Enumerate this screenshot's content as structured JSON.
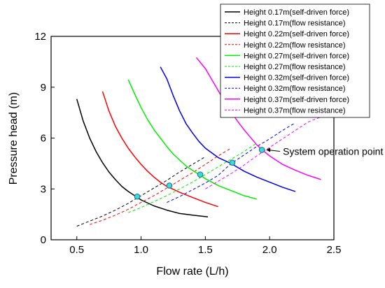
{
  "chart_data": {
    "type": "line",
    "xlabel": "Flow rate (L/h)",
    "ylabel": "Pressure head (m)",
    "xlim": [
      0.3,
      2.5
    ],
    "ylim": [
      0,
      12
    ],
    "xticks": [
      "0.5",
      "1.0",
      "1.5",
      "2.0",
      "2.5"
    ],
    "yticks": [
      "0",
      "3",
      "6",
      "9",
      "12"
    ],
    "grid": false,
    "legend_position": "top-right",
    "series": [
      {
        "name": "Height 0.17m(self-driven force)",
        "color": "#000000",
        "style": "solid",
        "points": [
          [
            0.5,
            8.3
          ],
          [
            0.55,
            7.0
          ],
          [
            0.6,
            6.0
          ],
          [
            0.65,
            5.2
          ],
          [
            0.7,
            4.55
          ],
          [
            0.75,
            4.0
          ],
          [
            0.8,
            3.55
          ],
          [
            0.85,
            3.15
          ],
          [
            0.9,
            2.85
          ],
          [
            0.95,
            2.6
          ],
          [
            1.0,
            2.35
          ],
          [
            1.1,
            2.0
          ],
          [
            1.2,
            1.75
          ],
          [
            1.3,
            1.55
          ],
          [
            1.4,
            1.45
          ],
          [
            1.52,
            1.35
          ]
        ]
      },
      {
        "name": "Height 0.17m(flow resistance)",
        "color": "#000000",
        "style": "dashed",
        "points": [
          [
            0.5,
            0.8
          ],
          [
            0.6,
            1.1
          ],
          [
            0.7,
            1.4
          ],
          [
            0.8,
            1.75
          ],
          [
            0.9,
            2.15
          ],
          [
            1.0,
            2.6
          ],
          [
            1.1,
            3.05
          ],
          [
            1.2,
            3.5
          ],
          [
            1.3,
            4.0
          ],
          [
            1.4,
            4.45
          ],
          [
            1.5,
            4.9
          ]
        ]
      },
      {
        "name": "Height 0.22m(self-driven force)",
        "color": "#ff0000",
        "style": "solid",
        "points": [
          [
            0.7,
            8.75
          ],
          [
            0.75,
            7.6
          ],
          [
            0.8,
            6.7
          ],
          [
            0.85,
            6.0
          ],
          [
            0.9,
            5.4
          ],
          [
            0.95,
            4.9
          ],
          [
            1.0,
            4.45
          ],
          [
            1.05,
            4.05
          ],
          [
            1.1,
            3.7
          ],
          [
            1.15,
            3.4
          ],
          [
            1.2,
            3.15
          ],
          [
            1.3,
            2.8
          ],
          [
            1.4,
            2.5
          ],
          [
            1.5,
            2.2
          ],
          [
            1.6,
            1.95
          ]
        ]
      },
      {
        "name": "Height 0.22m(flow resistance)",
        "color": "#ff0000",
        "style": "dashed",
        "points": [
          [
            0.6,
            0.9
          ],
          [
            0.7,
            1.15
          ],
          [
            0.8,
            1.45
          ],
          [
            0.9,
            1.8
          ],
          [
            1.0,
            2.2
          ],
          [
            1.1,
            2.6
          ],
          [
            1.2,
            3.05
          ],
          [
            1.3,
            3.5
          ],
          [
            1.4,
            3.95
          ],
          [
            1.5,
            4.45
          ],
          [
            1.6,
            4.95
          ],
          [
            1.7,
            5.4
          ]
        ]
      },
      {
        "name": "Height 0.27m(self-driven force)",
        "color": "#00ee00",
        "style": "solid",
        "points": [
          [
            0.9,
            9.45
          ],
          [
            0.95,
            8.6
          ],
          [
            1.0,
            7.8
          ],
          [
            1.05,
            7.1
          ],
          [
            1.1,
            6.5
          ],
          [
            1.15,
            6.0
          ],
          [
            1.2,
            5.5
          ],
          [
            1.25,
            5.05
          ],
          [
            1.3,
            4.7
          ],
          [
            1.35,
            4.35
          ],
          [
            1.4,
            4.1
          ],
          [
            1.45,
            3.85
          ],
          [
            1.5,
            3.6
          ],
          [
            1.6,
            3.2
          ],
          [
            1.7,
            2.9
          ],
          [
            1.8,
            2.6
          ],
          [
            1.9,
            2.4
          ]
        ]
      },
      {
        "name": "Height 0.27m(flow resistance)",
        "color": "#00ee00",
        "style": "dashed",
        "points": [
          [
            0.9,
            1.6
          ],
          [
            1.0,
            1.9
          ],
          [
            1.1,
            2.25
          ],
          [
            1.2,
            2.6
          ],
          [
            1.3,
            3.0
          ],
          [
            1.4,
            3.4
          ],
          [
            1.5,
            3.85
          ],
          [
            1.6,
            4.3
          ],
          [
            1.7,
            4.75
          ],
          [
            1.8,
            5.2
          ],
          [
            1.9,
            5.7
          ]
        ]
      },
      {
        "name": "Height 0.32m(self-driven force)",
        "color": "#0000ee",
        "style": "solid",
        "points": [
          [
            1.15,
            10.2
          ],
          [
            1.2,
            9.5
          ],
          [
            1.25,
            8.5
          ],
          [
            1.3,
            7.6
          ],
          [
            1.35,
            6.85
          ],
          [
            1.4,
            6.3
          ],
          [
            1.45,
            5.8
          ],
          [
            1.5,
            5.4
          ],
          [
            1.6,
            4.85
          ],
          [
            1.7,
            4.5
          ],
          [
            1.8,
            4.05
          ],
          [
            1.9,
            3.7
          ],
          [
            2.0,
            3.4
          ],
          [
            2.1,
            3.1
          ],
          [
            2.2,
            2.85
          ]
        ]
      },
      {
        "name": "Height 0.32m(flow resistance)",
        "color": "#0000ee",
        "style": "dashed",
        "points": [
          [
            1.2,
            2.2
          ],
          [
            1.3,
            2.55
          ],
          [
            1.4,
            2.95
          ],
          [
            1.5,
            3.35
          ],
          [
            1.6,
            3.8
          ],
          [
            1.7,
            4.5
          ],
          [
            1.8,
            5.0
          ],
          [
            1.9,
            5.5
          ],
          [
            2.0,
            5.95
          ],
          [
            2.1,
            6.45
          ],
          [
            2.2,
            6.9
          ]
        ]
      },
      {
        "name": "Height 0.37m(self-driven force)",
        "color": "#ff00ff",
        "style": "solid",
        "points": [
          [
            1.43,
            10.75
          ],
          [
            1.5,
            10.1
          ],
          [
            1.55,
            9.45
          ],
          [
            1.6,
            8.8
          ],
          [
            1.65,
            8.15
          ],
          [
            1.7,
            7.55
          ],
          [
            1.75,
            7.0
          ],
          [
            1.8,
            6.5
          ],
          [
            1.85,
            6.05
          ],
          [
            1.9,
            5.6
          ],
          [
            1.95,
            5.25
          ],
          [
            2.0,
            4.95
          ],
          [
            2.1,
            4.45
          ],
          [
            2.2,
            4.1
          ],
          [
            2.3,
            3.8
          ],
          [
            2.4,
            3.55
          ]
        ]
      },
      {
        "name": "Height 0.37m(flow resistance)",
        "color": "#ff00ff",
        "style": "dashed",
        "points": [
          [
            1.5,
            3.0
          ],
          [
            1.6,
            3.45
          ],
          [
            1.7,
            3.9
          ],
          [
            1.8,
            4.4
          ],
          [
            1.9,
            4.95
          ],
          [
            2.0,
            5.45
          ],
          [
            2.1,
            5.95
          ],
          [
            2.2,
            6.45
          ],
          [
            2.3,
            6.95
          ],
          [
            2.4,
            7.25
          ]
        ]
      }
    ],
    "operation_points": [
      [
        0.97,
        2.55
      ],
      [
        1.22,
        3.2
      ],
      [
        1.46,
        3.85
      ],
      [
        1.71,
        4.55
      ],
      [
        1.94,
        5.3
      ]
    ],
    "operation_point_color": "#3fd8d8",
    "annotation": {
      "text": "System operation point",
      "at": [
        1.94,
        5.3
      ]
    }
  }
}
